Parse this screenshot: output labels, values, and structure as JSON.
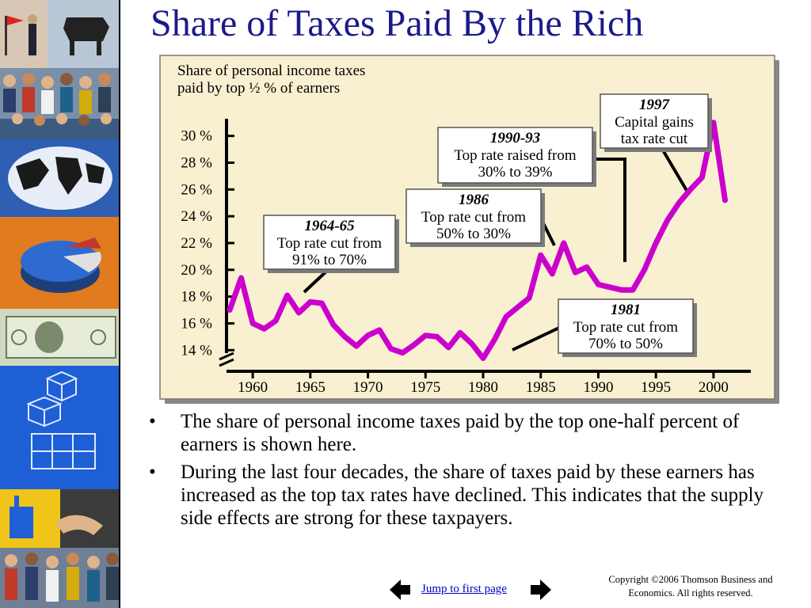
{
  "slide": {
    "title": "Share of Taxes Paid By the Rich",
    "bullets": [
      "The share of personal income taxes paid by the top one-half percent of earners is shown here.",
      "During the last four decades, the share of taxes paid by these earners has increased as the top tax rates have declined. This indicates that the supply side effects are strong for these taxpayers."
    ],
    "bullet_glyph": "•",
    "nav": {
      "link_text": "Jump to first page"
    },
    "copyright": [
      "Copyright ©2006  Thomson Business and",
      "Economics. All rights reserved."
    ]
  },
  "colors": {
    "title": "#1a1a8c",
    "line": "#cc00cc",
    "panel": "#f8f0d0",
    "link": "#0000cc"
  },
  "chart_data": {
    "type": "line",
    "ylabel_lines": [
      "Share of personal income taxes",
      "paid by top ½ % of earners"
    ],
    "x": [
      1958,
      1959,
      1960,
      1961,
      1962,
      1963,
      1964,
      1965,
      1966,
      1967,
      1968,
      1969,
      1970,
      1971,
      1972,
      1973,
      1974,
      1975,
      1976,
      1977,
      1978,
      1979,
      1980,
      1981,
      1982,
      1983,
      1984,
      1985,
      1986,
      1987,
      1988,
      1989,
      1990,
      1991,
      1992,
      1993,
      1994,
      1995,
      1996,
      1997,
      1998,
      1999,
      2000,
      2001
    ],
    "series": [
      {
        "values": [
          17.0,
          19.4,
          16.0,
          15.6,
          16.2,
          18.1,
          16.8,
          17.6,
          17.5,
          15.9,
          15.0,
          14.3,
          15.1,
          15.5,
          14.1,
          13.8,
          14.4,
          15.1,
          15.0,
          14.2,
          15.3,
          14.5,
          13.4,
          14.8,
          16.5,
          17.2,
          17.9,
          21.1,
          19.7,
          22.0,
          19.8,
          20.2,
          18.9,
          18.7,
          18.5,
          18.5,
          20.0,
          22.0,
          23.7,
          25.0,
          26.0,
          26.9,
          31.0,
          25.2
        ]
      }
    ],
    "ylim": [
      12.6,
      31.4
    ],
    "xlim": [
      1958,
      2002
    ],
    "yticks": [
      14,
      16,
      18,
      20,
      22,
      24,
      26,
      28,
      30
    ],
    "ytick_labels": [
      "14 %",
      "16 %",
      "18 %",
      "20 %",
      "22 %",
      "24 %",
      "26 %",
      "28 %",
      "30 %"
    ],
    "xticks": [
      1960,
      1965,
      1970,
      1975,
      1980,
      1985,
      1990,
      1995,
      2000
    ],
    "xtick_labels": [
      "1960",
      "1965",
      "1970",
      "1975",
      "1980",
      "1985",
      "1990",
      "1995",
      "2000"
    ],
    "axis_break": true,
    "annotations": [
      {
        "heading": "1964-65",
        "lines": [
          "Top rate cut from",
          "91% to 70%"
        ]
      },
      {
        "heading": "1986",
        "lines": [
          "Top rate cut from",
          "50% to 30%"
        ]
      },
      {
        "heading": "1990-93",
        "lines": [
          "Top rate raised from",
          "30% to 39%"
        ]
      },
      {
        "heading": "1997",
        "lines": [
          "Capital gains",
          "tax rate cut"
        ]
      },
      {
        "heading": "1981",
        "lines": [
          "Top rate cut from",
          "70% to 50%"
        ]
      }
    ]
  }
}
